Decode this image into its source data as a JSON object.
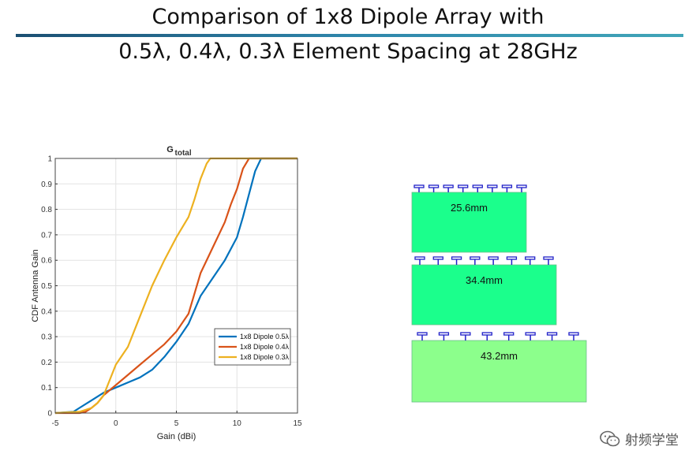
{
  "slide": {
    "title_line_1": "Comparison of 1x8 Dipole Array with",
    "title_line_2": "0.5λ, 0.4λ, 0.3λ Element Spacing at 28GHz"
  },
  "chart_data": {
    "type": "line",
    "title": "G",
    "title_subscript": "total",
    "xlabel": "Gain (dBi)",
    "ylabel": "CDF Antenna Gain",
    "xlim": [
      -5,
      15
    ],
    "ylim": [
      0,
      1
    ],
    "xticks": [
      -5,
      0,
      5,
      10,
      15
    ],
    "yticks": [
      0,
      0.1,
      0.2,
      0.3,
      0.4,
      0.5,
      0.6,
      0.7,
      0.8,
      0.9,
      1
    ],
    "grid": true,
    "legend_position": "bottom-right",
    "series": [
      {
        "name": "1x8 Dipole 0.5λ",
        "color": "#0072BD",
        "x": [
          -5,
          -3.5,
          -3,
          -2,
          -1,
          0,
          1,
          2,
          3,
          4,
          5,
          6,
          7,
          8,
          9,
          10,
          10.5,
          11,
          11.5,
          12,
          15
        ],
        "y": [
          0,
          0.005,
          0.02,
          0.05,
          0.08,
          0.1,
          0.12,
          0.14,
          0.17,
          0.22,
          0.28,
          0.35,
          0.46,
          0.53,
          0.6,
          0.69,
          0.77,
          0.86,
          0.95,
          1,
          1
        ]
      },
      {
        "name": "1x8 Dipole 0.4λ",
        "color": "#D95319",
        "x": [
          -5,
          -3,
          -2.5,
          -2,
          -1.5,
          -1,
          0,
          1,
          2,
          3,
          4,
          5,
          6,
          7,
          8,
          9,
          9.5,
          10,
          10.5,
          11,
          15
        ],
        "y": [
          0,
          0,
          0.005,
          0.02,
          0.04,
          0.07,
          0.11,
          0.15,
          0.19,
          0.23,
          0.27,
          0.32,
          0.39,
          0.55,
          0.65,
          0.75,
          0.82,
          0.88,
          0.96,
          1,
          1
        ]
      },
      {
        "name": "1x8 Dipole 0.3λ",
        "color": "#EDB120",
        "x": [
          -5,
          -3,
          -2,
          -1.5,
          -1,
          -0.5,
          0,
          1,
          2,
          3,
          4,
          5,
          6,
          6.5,
          7,
          7.5,
          7.8,
          15
        ],
        "y": [
          0,
          0.005,
          0.02,
          0.04,
          0.07,
          0.13,
          0.19,
          0.26,
          0.38,
          0.5,
          0.6,
          0.69,
          0.77,
          0.84,
          0.92,
          0.98,
          1,
          1
        ]
      }
    ]
  },
  "diagram": {
    "element_symbol": "T",
    "blocks": [
      {
        "label": "25.6mm",
        "elements": 8,
        "color": "#1bff8c"
      },
      {
        "label": "34.4mm",
        "elements": 8,
        "color": "#1bff8c"
      },
      {
        "label": "43.2mm",
        "elements": 8,
        "color": "#8cff8c"
      }
    ],
    "dipole_color": "#2020c8"
  },
  "watermark": {
    "icon": "wechat-icon",
    "text": "射频学堂"
  }
}
